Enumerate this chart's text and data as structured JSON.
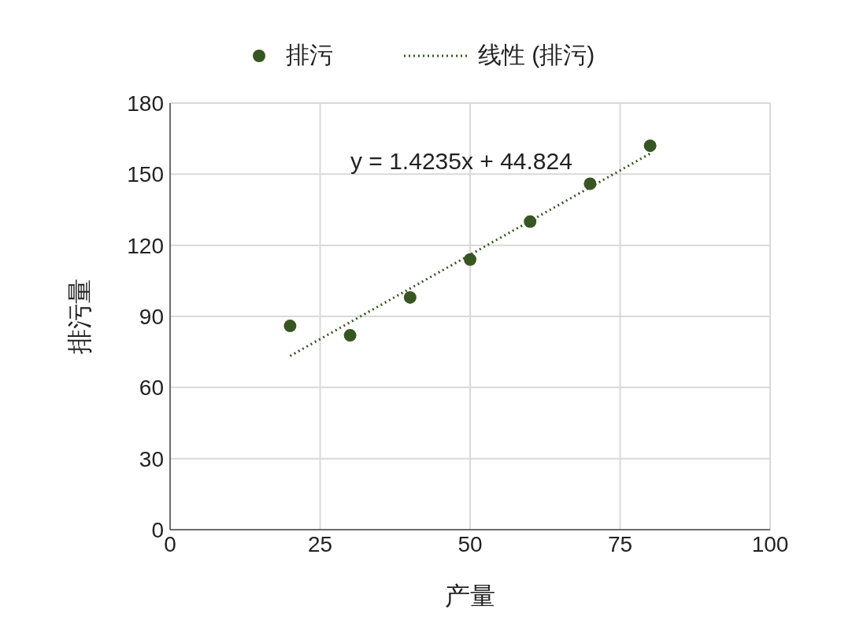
{
  "chart_data": {
    "type": "scatter",
    "xlabel": "产量",
    "ylabel": "排污量",
    "series": [
      {
        "name": "排污",
        "color": "#375623",
        "x": [
          20,
          30,
          40,
          50,
          60,
          70,
          80
        ],
        "values": [
          86,
          82,
          98,
          114,
          130,
          146,
          162
        ]
      },
      {
        "name": "线性 (排污)",
        "type": "line",
        "color": "#375623",
        "line_style": "dotted",
        "marker": "none",
        "x": [
          20,
          80
        ],
        "values": [
          73.3,
          158.7
        ]
      }
    ],
    "annotations": [
      "y = 1.4235x + 44.824"
    ],
    "xlim": [
      0,
      100
    ],
    "xticks": [
      0,
      25,
      50,
      75,
      100
    ],
    "ylim": [
      0,
      180
    ],
    "yticks": [
      0,
      30,
      60,
      90,
      120,
      150,
      180
    ],
    "grid": true,
    "legend": "top",
    "marker": "circle"
  }
}
